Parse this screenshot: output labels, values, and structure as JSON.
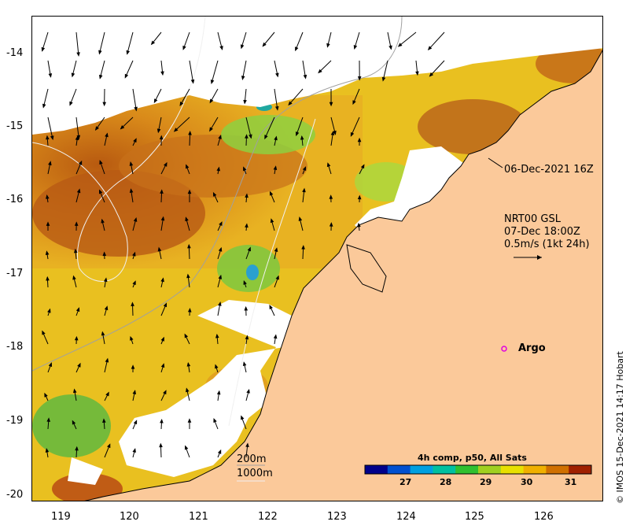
{
  "axes": {
    "x_ticks": [
      "119",
      "120",
      "121",
      "122",
      "123",
      "124",
      "125",
      "126"
    ],
    "y_ticks": [
      "-14",
      "-15",
      "-16",
      "-17",
      "-18",
      "-19",
      "-20"
    ]
  },
  "annotations": {
    "pass_time": "06-Dec-2021 16Z",
    "current_product": "NRT00 GSL",
    "current_time": "07-Dec 18:00Z",
    "scale_label": "0.5m/s (1kt 24h)",
    "argo_label": "Argo",
    "isobath_200": "200m",
    "isobath_1000": "1000m"
  },
  "colorbar": {
    "title": "4h comp, p50, All Sats",
    "ticks": [
      "27",
      "28",
      "29",
      "30",
      "31"
    ],
    "range": [
      26,
      31.6
    ],
    "colors": [
      "#00008b",
      "#0050d0",
      "#00a0e0",
      "#00c0a0",
      "#30c030",
      "#a0d020",
      "#e8e000",
      "#f0b000",
      "#d07000",
      "#a02000"
    ]
  },
  "credit": "© IMOS 15-Dec-2021 14:17 Hobart",
  "colors": {
    "land": "#fbc99a",
    "cloud": "#ffffff",
    "argo_marker": "#e000e0"
  }
}
